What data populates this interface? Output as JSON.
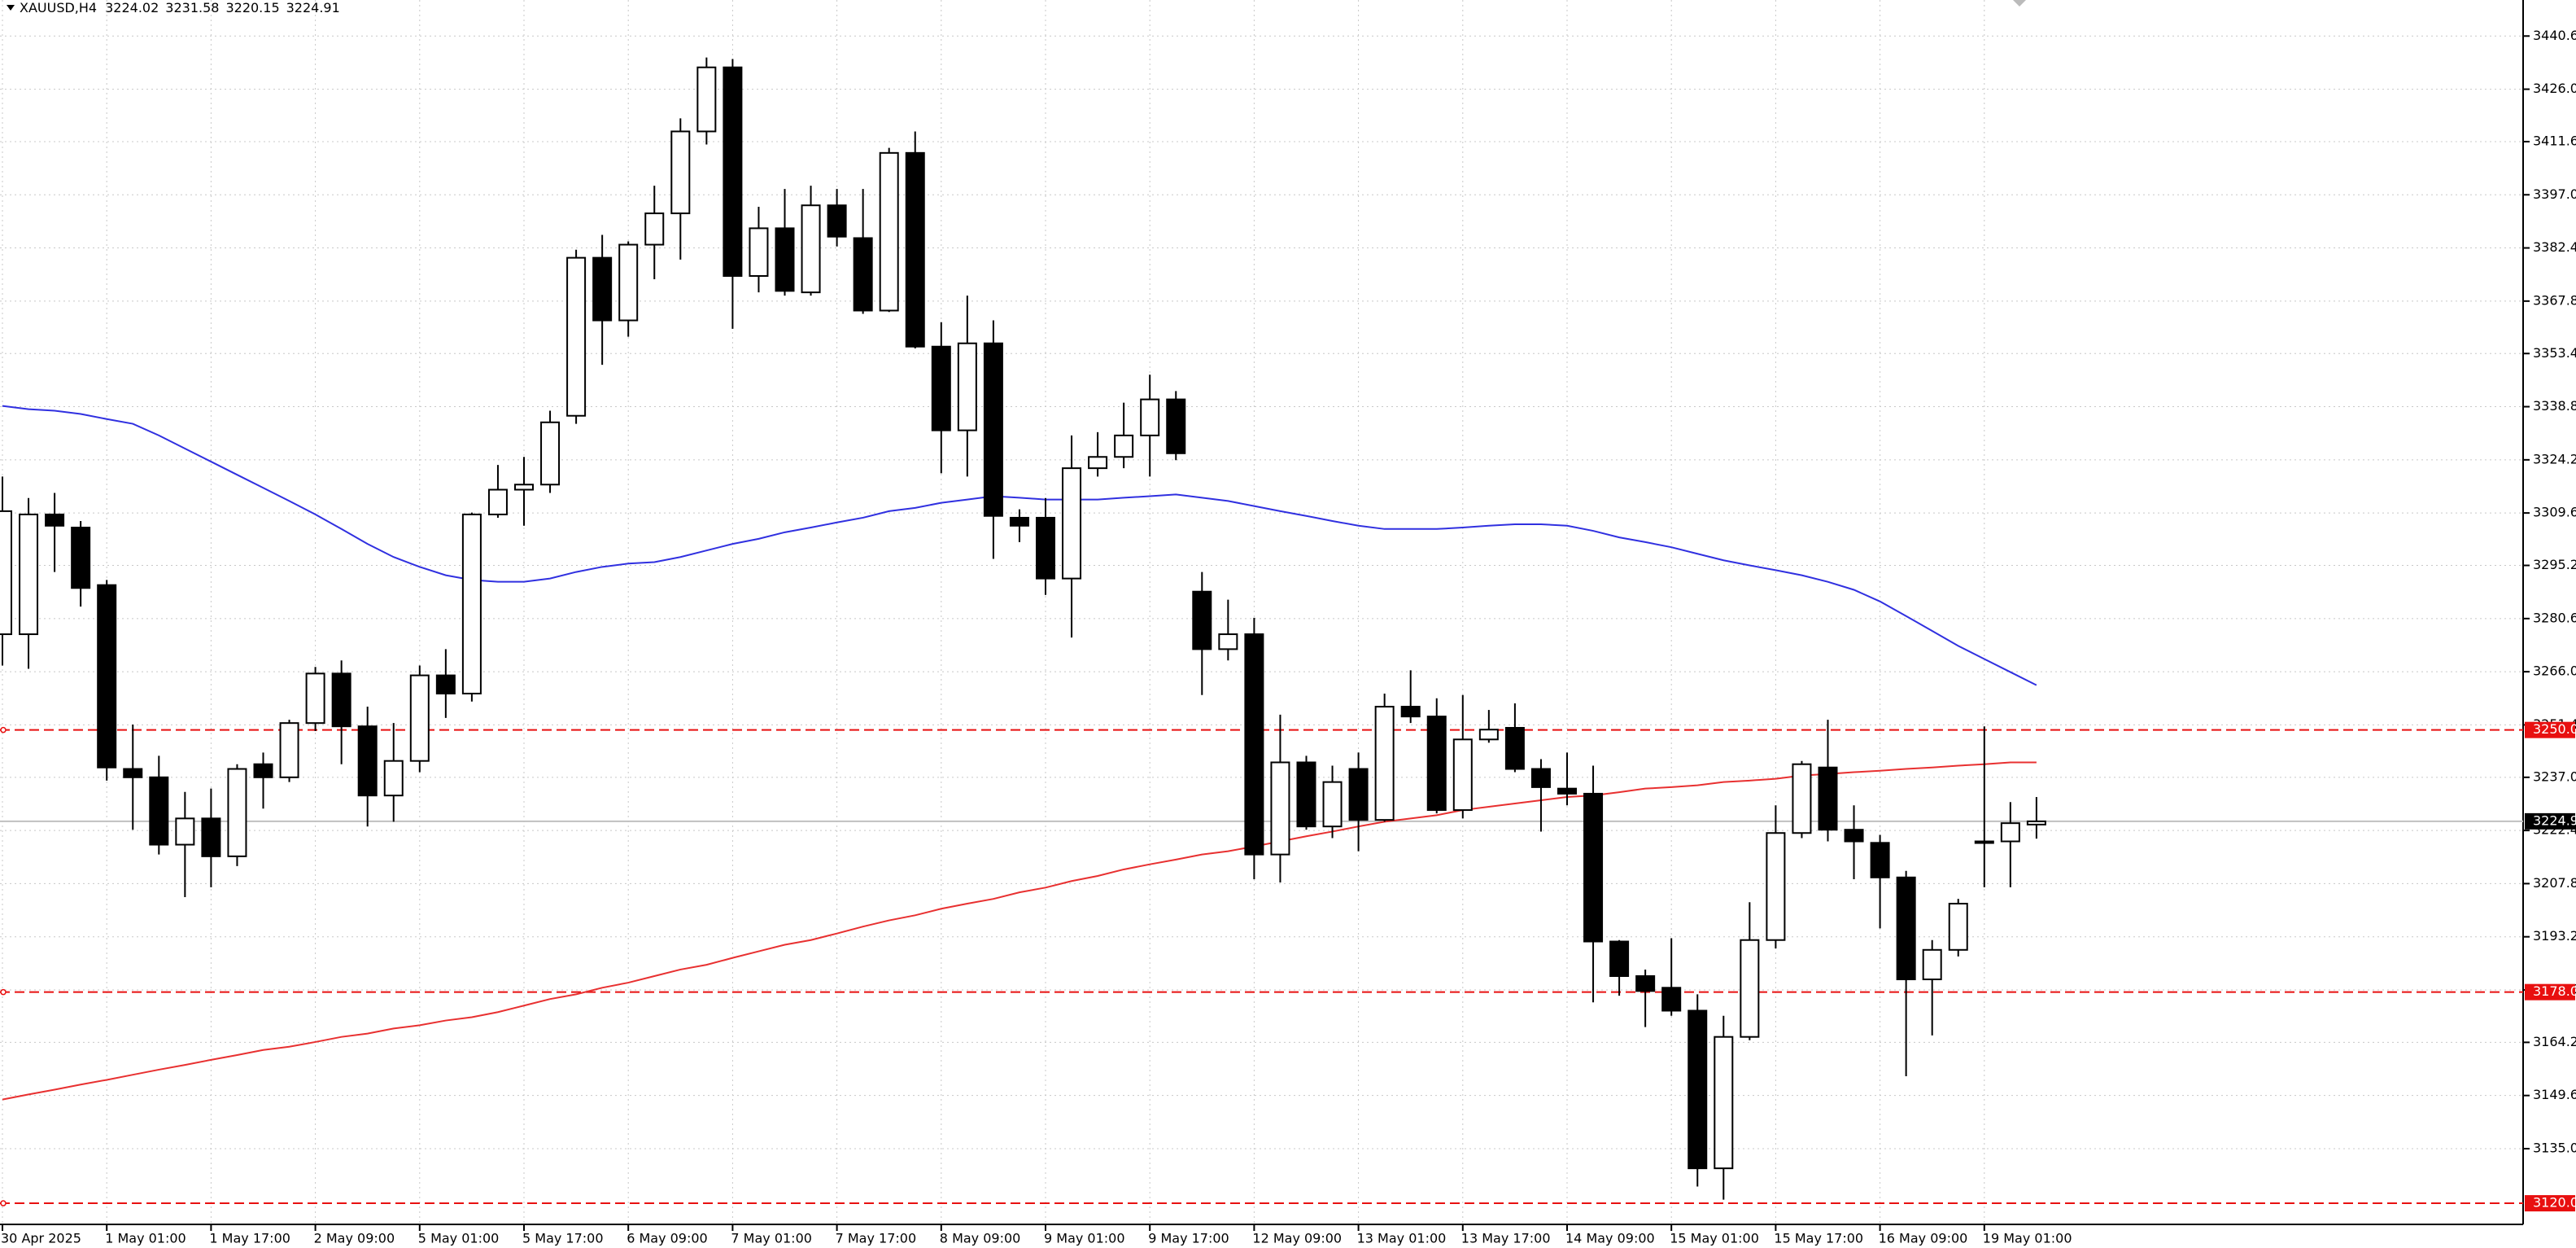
{
  "chart_data": {
    "type": "candlestick",
    "header": {
      "symbol": "XAUUSD,H4",
      "open": 3224.02,
      "high": 3231.58,
      "low": 3220.15,
      "close": 3224.91
    },
    "current_price": 3224.91,
    "up_color": "#ffffff",
    "down_color": "#000000",
    "outline_color": "#000000",
    "grid": true,
    "categories": [
      "30 Apr 2025",
      null,
      null,
      null,
      "1 May 01:00",
      null,
      null,
      null,
      "1 May 17:00",
      null,
      null,
      null,
      "2 May 09:00",
      null,
      null,
      null,
      "5 May 01:00",
      null,
      null,
      null,
      "5 May 17:00",
      null,
      null,
      null,
      "6 May 09:00",
      null,
      null,
      null,
      "7 May 01:00",
      null,
      null,
      null,
      "7 May 17:00",
      null,
      null,
      null,
      "8 May 09:00",
      null,
      null,
      null,
      "9 May 01:00",
      null,
      null,
      null,
      "9 May 17:00",
      null,
      null,
      null,
      "12 May 09:00",
      null,
      null,
      null,
      "13 May 01:00",
      null,
      null,
      null,
      "13 May 17:00",
      null,
      null,
      null,
      "14 May 09:00",
      null,
      null,
      null,
      "15 May 01:00",
      null,
      null,
      null,
      "15 May 17:00",
      null,
      null,
      null,
      "16 May 09:00",
      null,
      null,
      null,
      "19 May 01:00",
      null,
      null
    ],
    "open": [
      3276.3,
      3276.3,
      3309.2,
      3305.6,
      3289.8,
      3239.3,
      3237.0,
      3218.5,
      3225.7,
      3215.3,
      3240.6,
      3237.0,
      3251.9,
      3265.5,
      3251.0,
      3232.0,
      3241.5,
      3265.0,
      3260.0,
      3309.2,
      3316.0,
      3317.4,
      3336.3,
      3379.7,
      3362.5,
      3383.3,
      3391.9,
      3414.4,
      3432.0,
      3374.7,
      3387.8,
      3370.2,
      3394.1,
      3385.1,
      3365.2,
      3408.5,
      3355.3,
      3332.3,
      3356.2,
      3308.3,
      3308.3,
      3291.6,
      3321.9,
      3325.0,
      3330.9,
      3340.8,
      3288.0,
      3272.2,
      3276.3,
      3215.8,
      3241.1,
      3223.5,
      3239.3,
      3225.3,
      3256.4,
      3253.7,
      3228.0,
      3247.4,
      3250.6,
      3239.3,
      3233.9,
      3232.5,
      3191.9,
      3182.4,
      3179.2,
      3172.9,
      3129.6,
      3165.7,
      3192.3,
      3221.7,
      3239.7,
      3222.6,
      3219.0,
      3209.5,
      3181.5,
      3189.6,
      3219.4,
      3219.4,
      3224.02
    ],
    "high": [
      3319.6,
      3313.7,
      3315.1,
      3307.4,
      3291.2,
      3251.5,
      3242.9,
      3233.0,
      3233.9,
      3240.6,
      3243.8,
      3252.8,
      3267.3,
      3269.1,
      3256.4,
      3251.9,
      3267.7,
      3272.2,
      3309.7,
      3322.8,
      3325.0,
      3337.7,
      3381.9,
      3386.0,
      3384.2,
      3399.5,
      3418.0,
      3434.7,
      3434.3,
      3393.7,
      3398.6,
      3399.5,
      3398.6,
      3398.6,
      3409.9,
      3414.4,
      3362.0,
      3369.3,
      3362.5,
      3310.6,
      3313.7,
      3330.9,
      3331.8,
      3339.9,
      3347.6,
      3343.1,
      3293.4,
      3285.8,
      3280.8,
      3254.2,
      3242.9,
      3240.2,
      3243.8,
      3260.0,
      3266.4,
      3258.7,
      3259.6,
      3255.5,
      3257.3,
      3242.0,
      3243.8,
      3240.2,
      3192.3,
      3184.2,
      3192.8,
      3177.4,
      3171.5,
      3202.7,
      3229.3,
      3241.5,
      3252.8,
      3229.3,
      3221.2,
      3211.3,
      3192.3,
      3203.6,
      3251.0,
      3230.2,
      3231.58
    ],
    "low": [
      3267.7,
      3266.8,
      3293.4,
      3283.9,
      3236.1,
      3222.6,
      3215.8,
      3204.1,
      3206.8,
      3212.6,
      3228.4,
      3235.7,
      3249.7,
      3240.6,
      3223.5,
      3224.8,
      3238.4,
      3253.3,
      3257.8,
      3308.3,
      3306.1,
      3315.1,
      3334.1,
      3350.3,
      3358.0,
      3373.8,
      3379.2,
      3410.8,
      3360.2,
      3370.2,
      3369.3,
      3369.3,
      3382.8,
      3364.3,
      3364.8,
      3354.8,
      3320.5,
      3319.6,
      3297.0,
      3301.6,
      3287.1,
      3275.4,
      3319.6,
      3321.9,
      3319.6,
      3324.1,
      3259.6,
      3269.1,
      3209.0,
      3208.1,
      3222.6,
      3220.3,
      3216.7,
      3224.8,
      3251.9,
      3227.1,
      3225.7,
      3246.5,
      3238.4,
      3222.1,
      3229.3,
      3175.2,
      3177.0,
      3168.4,
      3171.5,
      3124.6,
      3121.0,
      3164.8,
      3190.0,
      3220.3,
      3219.4,
      3209.0,
      3195.5,
      3154.9,
      3166.1,
      3187.8,
      3206.8,
      3206.8,
      3220.15
    ],
    "close": [
      3310.1,
      3309.2,
      3306.1,
      3289.0,
      3239.7,
      3237.0,
      3218.5,
      3225.7,
      3215.3,
      3239.3,
      3237.0,
      3251.9,
      3265.5,
      3251.0,
      3232.0,
      3241.5,
      3265.0,
      3260.0,
      3309.2,
      3316.0,
      3317.4,
      3334.5,
      3379.7,
      3362.5,
      3383.3,
      3391.9,
      3414.4,
      3432.0,
      3374.7,
      3387.8,
      3370.6,
      3394.1,
      3385.5,
      3365.2,
      3408.5,
      3355.3,
      3332.3,
      3356.2,
      3308.8,
      3306.1,
      3291.6,
      3321.9,
      3325.0,
      3330.9,
      3340.8,
      3326.0,
      3272.2,
      3276.3,
      3215.8,
      3241.1,
      3223.5,
      3235.7,
      3225.3,
      3256.4,
      3253.7,
      3228.0,
      3247.4,
      3250.1,
      3239.3,
      3234.3,
      3232.5,
      3191.9,
      3182.4,
      3178.3,
      3172.9,
      3129.6,
      3165.7,
      3192.3,
      3221.7,
      3240.6,
      3222.6,
      3219.4,
      3209.5,
      3181.5,
      3189.6,
      3202.3,
      3219.0,
      3224.4,
      3224.91
    ],
    "moving_averages": [
      {
        "color": "#3030e0",
        "values": [
          3339.0,
          3338.1,
          3337.7,
          3336.8,
          3335.4,
          3334.1,
          3330.9,
          3327.3,
          3323.7,
          3320.1,
          3316.5,
          3312.9,
          3309.2,
          3305.2,
          3301.1,
          3297.5,
          3294.8,
          3292.5,
          3291.2,
          3290.7,
          3290.7,
          3291.6,
          3293.4,
          3294.8,
          3295.7,
          3296.1,
          3297.5,
          3299.3,
          3301.1,
          3302.5,
          3304.3,
          3305.6,
          3307.0,
          3308.3,
          3310.1,
          3311.0,
          3312.4,
          3313.3,
          3314.2,
          3313.8,
          3313.3,
          3313.3,
          3313.3,
          3313.8,
          3314.2,
          3314.7,
          3313.8,
          3312.9,
          3311.5,
          3310.1,
          3308.8,
          3307.4,
          3306.1,
          3305.2,
          3305.2,
          3305.2,
          3305.6,
          3306.1,
          3306.5,
          3306.5,
          3306.1,
          3304.7,
          3302.9,
          3301.6,
          3300.2,
          3298.4,
          3296.6,
          3295.2,
          3293.9,
          3292.5,
          3290.7,
          3288.5,
          3285.3,
          3281.3,
          3277.2,
          3273.1,
          3269.5,
          3265.9,
          3262.3
        ]
      },
      {
        "color": "#e83030",
        "values": [
          3148.5,
          3149.9,
          3151.2,
          3152.6,
          3153.9,
          3155.3,
          3156.7,
          3158.0,
          3159.4,
          3160.7,
          3162.1,
          3163.0,
          3164.3,
          3165.7,
          3166.6,
          3168.0,
          3168.9,
          3170.2,
          3171.1,
          3172.5,
          3174.3,
          3176.1,
          3177.4,
          3179.2,
          3180.6,
          3182.4,
          3184.2,
          3185.5,
          3187.4,
          3189.2,
          3191.0,
          3192.3,
          3194.1,
          3196.0,
          3197.7,
          3199.1,
          3200.9,
          3202.3,
          3203.6,
          3205.4,
          3206.7,
          3208.5,
          3209.9,
          3211.7,
          3213.1,
          3214.4,
          3215.8,
          3216.7,
          3218.0,
          3219.4,
          3220.8,
          3222.1,
          3223.5,
          3224.8,
          3225.7,
          3226.6,
          3228.0,
          3228.9,
          3229.8,
          3230.7,
          3231.6,
          3232.0,
          3232.9,
          3233.9,
          3234.3,
          3234.8,
          3235.7,
          3236.1,
          3236.6,
          3237.5,
          3237.9,
          3238.4,
          3238.8,
          3239.3,
          3239.7,
          3240.2,
          3240.6,
          3241.1,
          3241.1
        ]
      }
    ],
    "levels": [
      {
        "value": 3250,
        "label": "3250.00"
      },
      {
        "value": 3178,
        "label": "3178.00"
      },
      {
        "value": 3120,
        "label": "3120.00"
      }
    ],
    "level_color": "#e81010",
    "ylim": [
      3114.2,
      3450.5
    ],
    "yticks": [
      {
        "value": 3440.6,
        "label": "3440.60"
      },
      {
        "value": 3426,
        "label": "3426.00"
      },
      {
        "value": 3411.6,
        "label": "3411.60"
      },
      {
        "value": 3397,
        "label": "3397.00"
      },
      {
        "value": 3382.4,
        "label": "3382.40"
      },
      {
        "value": 3367.8,
        "label": "3367.80"
      },
      {
        "value": 3353.4,
        "label": "3353.40"
      },
      {
        "value": 3338.8,
        "label": "3338.80"
      },
      {
        "value": 3324.2,
        "label": "3324.20"
      },
      {
        "value": 3309.6,
        "label": "3309.60"
      },
      {
        "value": 3295.2,
        "label": "3295.20"
      },
      {
        "value": 3280.6,
        "label": "3280.60"
      },
      {
        "value": 3266,
        "label": "3266.00"
      },
      {
        "value": 3251.4,
        "label": "3251.40"
      },
      {
        "value": 3237,
        "label": "3237.00"
      },
      {
        "value": 3222.4,
        "label": "3222.40"
      },
      {
        "value": 3207.8,
        "label": "3207.80"
      },
      {
        "value": 3193.2,
        "label": "3193.20"
      },
      {
        "value": 3178.6,
        "label": "3178.60"
      },
      {
        "value": 3164.2,
        "label": "3164.20"
      },
      {
        "value": 3149.6,
        "label": "3149.60"
      },
      {
        "value": 3135,
        "label": "3135.00"
      }
    ]
  }
}
